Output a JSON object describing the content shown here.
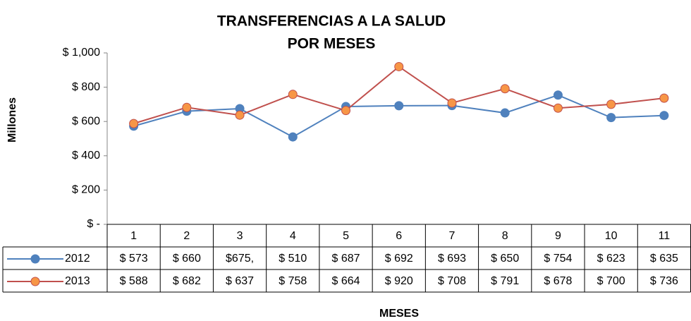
{
  "chart_data": {
    "type": "line",
    "title": "TRANSFERENCIAS A LA SALUD",
    "subtitle": "POR MESES",
    "y_label": "Millones",
    "x_label": "MESES",
    "categories": [
      "1",
      "2",
      "3",
      "4",
      "5",
      "6",
      "7",
      "8",
      "9",
      "10",
      "11"
    ],
    "series": [
      {
        "name": "2012",
        "color": "#4f81bd",
        "marker_color": "#4f81bd",
        "values": [
          573,
          660,
          675,
          510,
          687,
          692,
          693,
          650,
          754,
          623,
          635
        ],
        "value_labels": [
          "$ 573",
          "$ 660",
          "$675,",
          "$ 510",
          "$ 687",
          "$ 692",
          "$ 693",
          "$ 650",
          "$ 754",
          "$ 623",
          "$ 635"
        ]
      },
      {
        "name": "2013",
        "color": "#c0504d",
        "marker_color": "#f79646",
        "values": [
          588,
          682,
          637,
          758,
          664,
          920,
          708,
          791,
          678,
          700,
          736
        ],
        "value_labels": [
          "$ 588",
          "$ 682",
          "$ 637",
          "$ 758",
          "$ 664",
          "$ 920",
          "$ 708",
          "$ 791",
          "$ 678",
          "$ 700",
          "$ 736"
        ]
      }
    ],
    "ylim": [
      0,
      1000
    ],
    "yticks": [
      {
        "value": 0,
        "label": "$ -"
      },
      {
        "value": 200,
        "label": "$ 200"
      },
      {
        "value": 400,
        "label": "$ 400"
      },
      {
        "value": 600,
        "label": "$ 600"
      },
      {
        "value": 800,
        "label": "$ 800"
      },
      {
        "value": 1000,
        "label": "$ 1,000"
      }
    ],
    "grid": false
  }
}
